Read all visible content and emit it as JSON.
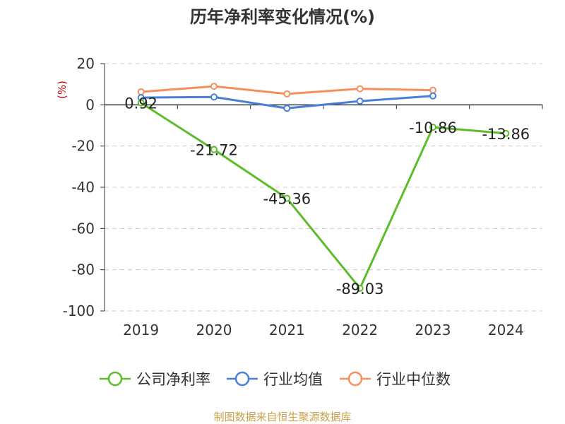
{
  "chart_data": {
    "type": "line",
    "title": "历年净利率变化情况(%)",
    "ylabel": "(%)",
    "categories": [
      "2019",
      "2020",
      "2021",
      "2022",
      "2023",
      "2024"
    ],
    "ylim": [
      -100,
      20
    ],
    "yticks": [
      20,
      0,
      -20,
      -40,
      -60,
      -80,
      -100
    ],
    "grid": true,
    "legend_position": "bottom",
    "series": [
      {
        "name": "公司净利率",
        "color": "#5cbd2b",
        "values": [
          0.92,
          -21.72,
          -45.36,
          -89.03,
          -10.86,
          -13.86
        ],
        "labels": [
          "0.92",
          "-21.72",
          "-45.36",
          "-89.03",
          "-10.86",
          "-13.86"
        ]
      },
      {
        "name": "行业均值",
        "color": "#4a7fd6",
        "values": [
          3.5,
          3.8,
          -1.7,
          1.8,
          4.3,
          null
        ]
      },
      {
        "name": "行业中位数",
        "color": "#f5905e",
        "values": [
          6.3,
          9.0,
          5.3,
          7.8,
          7.1,
          null
        ]
      }
    ],
    "source": "制图数据来自恒生聚源数据库",
    "colors": {
      "unit": "#cc0000",
      "source": "#c8a24a",
      "grid": "#cccccc",
      "axis": "#333333"
    }
  }
}
